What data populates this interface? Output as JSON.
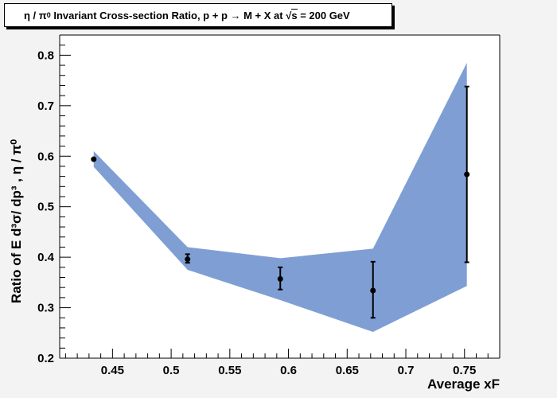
{
  "chart_data": {
    "type": "scatter",
    "title": {
      "prefix": "η / π",
      "prefix_sup": "0",
      "main": " Invariant Cross-section Ratio, p + p → M + X at ",
      "sqrt_sym": "√",
      "sqrt_arg": "s",
      "suffix": " = 200 GeV"
    },
    "xlabel": "Average xF",
    "ylabel": "Ratio of E d³σ/ dp³ ,  η / π⁰",
    "xlim": [
      0.405,
      0.78
    ],
    "ylim": [
      0.2,
      0.84
    ],
    "x_ticks": [
      0.45,
      0.5,
      0.55,
      0.6,
      0.65,
      0.7,
      0.75
    ],
    "x_tick_labels": [
      "0.45",
      "0.5",
      "0.55",
      "0.6",
      "0.65",
      "0.7",
      "0.75"
    ],
    "y_ticks": [
      0.2,
      0.3,
      0.4,
      0.5,
      0.6,
      0.7,
      0.8
    ],
    "y_tick_labels": [
      "0.2",
      "0.3",
      "0.4",
      "0.5",
      "0.6",
      "0.7",
      "0.8"
    ],
    "series": [
      {
        "x": [
          0.434,
          0.514,
          0.593,
          0.672,
          0.752
        ],
        "y": [
          0.594,
          0.396,
          0.357,
          0.334,
          0.564
        ],
        "yerr_low": [
          0.0,
          0.007,
          0.021,
          0.054,
          0.174
        ],
        "yerr_high": [
          0.0,
          0.01,
          0.023,
          0.057,
          0.174
        ],
        "marker_color": "#000000"
      }
    ],
    "band": {
      "x": [
        0.434,
        0.514,
        0.593,
        0.672,
        0.752
      ],
      "y_low": [
        0.579,
        0.375,
        0.315,
        0.252,
        0.343
      ],
      "y_high": [
        0.61,
        0.42,
        0.398,
        0.417,
        0.785
      ],
      "color": "#7f9fd4"
    },
    "grid": false,
    "legend": "none"
  }
}
